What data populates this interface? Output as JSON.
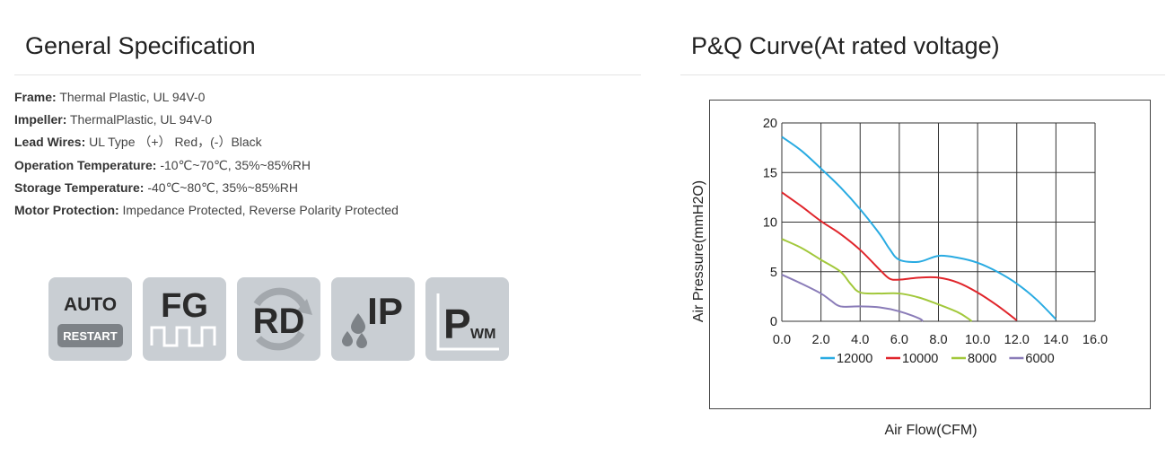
{
  "spec": {
    "title": "General Specification",
    "rows": [
      {
        "key": "Frame:",
        "value": " Thermal Plastic, UL 94V-0"
      },
      {
        "key": "Impeller:",
        "value": " ThermalPlastic, UL 94V-0"
      },
      {
        "key": "Lead Wires:",
        "value": " UL Type （+） Red，(-）Black"
      },
      {
        "key": "Operation Temperature:",
        "value": " -10℃~70℃, 35%~85%RH"
      },
      {
        "key": "Storage Temperature:",
        "value": " -40℃~80℃, 35%~85%RH"
      },
      {
        "key": "Motor Protection:",
        "value": " Impedance Protected, Reverse Polarity Protected"
      }
    ]
  },
  "badges": {
    "auto_line1": "AUTO",
    "auto_line2": "RESTART",
    "fg": "FG",
    "rd": "RD",
    "ip": "IP",
    "pwm_big": "P",
    "pwm_small": "WM",
    "colors": {
      "bg": "#c9ced3",
      "dark": "#2b2b2b",
      "grey": "#7d8287",
      "white": "#ffffff"
    }
  },
  "curve": {
    "title": "P&Q Curve(At rated voltage)"
  },
  "chart_data": {
    "type": "line",
    "xlabel": "Air Flow(CFM)",
    "ylabel": "Air Pressure(mmH2O)",
    "xlim": [
      0,
      16
    ],
    "ylim": [
      0,
      20
    ],
    "x_ticks": [
      "0.0",
      "2.0",
      "4.0",
      "6.0",
      "8.0",
      "10.0",
      "12.0",
      "14.0",
      "16.0"
    ],
    "y_ticks": [
      "0",
      "5",
      "10",
      "15",
      "20"
    ],
    "grid": true,
    "legend_position": "bottom",
    "series": [
      {
        "name": "12000",
        "color": "#29abe2",
        "points": [
          [
            0,
            18.6
          ],
          [
            1,
            17.2
          ],
          [
            2,
            15.4
          ],
          [
            3,
            13.5
          ],
          [
            4,
            11.3
          ],
          [
            5,
            8.8
          ],
          [
            5.5,
            7.3
          ],
          [
            6,
            6.2
          ],
          [
            7,
            6.0
          ],
          [
            8,
            6.6
          ],
          [
            9,
            6.4
          ],
          [
            10,
            5.9
          ],
          [
            11,
            5.0
          ],
          [
            12,
            3.8
          ],
          [
            13,
            2.2
          ],
          [
            14,
            0.2
          ]
        ]
      },
      {
        "name": "10000",
        "color": "#e0252b",
        "points": [
          [
            0,
            13.0
          ],
          [
            1,
            11.6
          ],
          [
            2,
            10.1
          ],
          [
            3,
            8.8
          ],
          [
            4,
            7.2
          ],
          [
            5,
            5.2
          ],
          [
            5.5,
            4.3
          ],
          [
            6,
            4.2
          ],
          [
            7,
            4.4
          ],
          [
            8,
            4.4
          ],
          [
            9,
            3.9
          ],
          [
            10,
            2.9
          ],
          [
            11,
            1.6
          ],
          [
            12,
            0.1
          ]
        ]
      },
      {
        "name": "8000",
        "color": "#a2c83b",
        "points": [
          [
            0,
            8.3
          ],
          [
            1,
            7.4
          ],
          [
            2,
            6.2
          ],
          [
            3,
            5.0
          ],
          [
            3.5,
            3.8
          ],
          [
            4,
            2.9
          ],
          [
            5,
            2.8
          ],
          [
            6,
            2.8
          ],
          [
            7,
            2.4
          ],
          [
            8,
            1.7
          ],
          [
            9,
            0.9
          ],
          [
            9.5,
            0.3
          ],
          [
            9.7,
            0.0
          ]
        ]
      },
      {
        "name": "6000",
        "color": "#8a7cb8",
        "points": [
          [
            0,
            4.7
          ],
          [
            1,
            3.8
          ],
          [
            2,
            2.8
          ],
          [
            2.5,
            2.1
          ],
          [
            3,
            1.5
          ],
          [
            4,
            1.5
          ],
          [
            5,
            1.4
          ],
          [
            6,
            1.0
          ],
          [
            7,
            0.3
          ],
          [
            7.2,
            0.0
          ]
        ]
      }
    ]
  }
}
